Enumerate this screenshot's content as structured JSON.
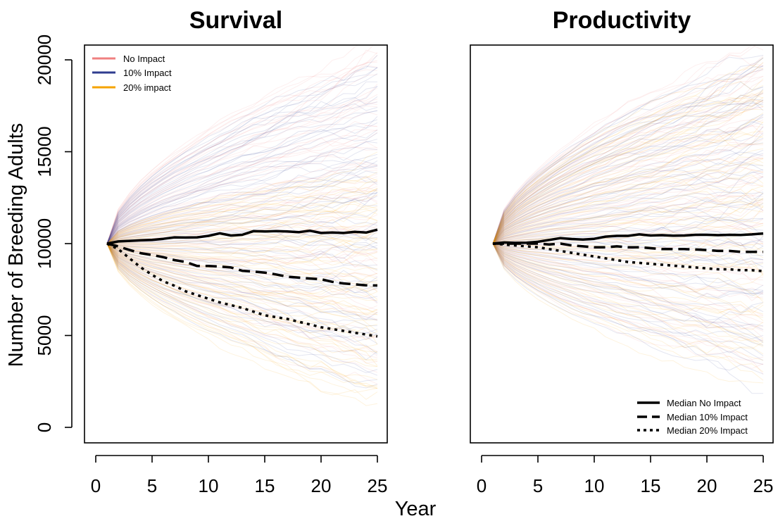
{
  "figure": {
    "shared_xlabel": "Year",
    "shared_ylabel": "Number of Breeding Adults"
  },
  "colors": {
    "no_impact": "#f08080",
    "impact_10": "#2f3c8f",
    "impact_20": "#f5a300",
    "median": "#000000"
  },
  "legends": {
    "scenarios": {
      "placement": "top-left of Survival panel",
      "items": [
        {
          "label": "No Impact",
          "color": "#f08080"
        },
        {
          "label": "10% Impact",
          "color": "#2f3c8f"
        },
        {
          "label": "20% impact",
          "color": "#f5a300"
        }
      ]
    },
    "medians": {
      "placement": "bottom-right of Productivity panel",
      "items": [
        {
          "label": "Median No Impact",
          "style": "solid"
        },
        {
          "label": "Median 10% Impact",
          "style": "dashed"
        },
        {
          "label": "Median 20% Impact",
          "style": "dotted"
        }
      ]
    }
  },
  "chart_data": [
    {
      "type": "line",
      "title": "Survival",
      "xlabel": "Year",
      "ylabel": "Number of Breeding Adults",
      "xlim": [
        0,
        25
      ],
      "ylim": [
        0,
        20000
      ],
      "xticks": [
        0,
        5,
        10,
        15,
        20,
        25
      ],
      "yticks": [
        0,
        5000,
        10000,
        15000,
        20000
      ],
      "grid": false,
      "background_trajectories": {
        "description_free": true,
        "start_value": 10000,
        "scenarios": [
          {
            "name": "No Impact",
            "color": "#f08080",
            "year25_low": 2500,
            "year25_high": 21000
          },
          {
            "name": "10% Impact",
            "color": "#2f3c8f",
            "year25_low": 1800,
            "year25_high": 20000
          },
          {
            "name": "20% impact",
            "color": "#f5a300",
            "year25_low": 900,
            "year25_high": 14000
          }
        ]
      },
      "series": [
        {
          "name": "Median No Impact",
          "style": "solid",
          "x": [
            1,
            2,
            3,
            4,
            5,
            6,
            7,
            8,
            9,
            10,
            11,
            12,
            13,
            14,
            15,
            16,
            17,
            18,
            19,
            20,
            21,
            22,
            23,
            24,
            25
          ],
          "y": [
            10000,
            10120,
            10150,
            10180,
            10200,
            10260,
            10340,
            10330,
            10340,
            10420,
            10560,
            10440,
            10480,
            10680,
            10660,
            10680,
            10660,
            10620,
            10700,
            10580,
            10600,
            10580,
            10640,
            10600,
            10760
          ]
        },
        {
          "name": "Median 10% Impact",
          "style": "dashed",
          "x": [
            1,
            2,
            3,
            4,
            5,
            6,
            7,
            8,
            9,
            10,
            11,
            12,
            13,
            14,
            15,
            16,
            17,
            18,
            19,
            20,
            21,
            22,
            23,
            24,
            25
          ],
          "y": [
            10000,
            9850,
            9650,
            9480,
            9380,
            9260,
            9100,
            9000,
            8780,
            8780,
            8750,
            8700,
            8520,
            8480,
            8420,
            8320,
            8200,
            8150,
            8100,
            8060,
            7920,
            7830,
            7780,
            7730,
            7720
          ]
        },
        {
          "name": "Median 20% Impact",
          "style": "dotted",
          "x": [
            1,
            2,
            3,
            4,
            5,
            6,
            7,
            8,
            9,
            10,
            11,
            12,
            13,
            14,
            15,
            16,
            17,
            18,
            19,
            20,
            21,
            22,
            23,
            24,
            25
          ],
          "y": [
            10000,
            9700,
            9200,
            8700,
            8300,
            7950,
            7700,
            7400,
            7200,
            7000,
            6800,
            6650,
            6500,
            6300,
            6100,
            6000,
            5900,
            5750,
            5600,
            5450,
            5350,
            5250,
            5150,
            5050,
            4950
          ]
        }
      ]
    },
    {
      "type": "line",
      "title": "Productivity",
      "xlabel": "Year",
      "ylabel": "",
      "xlim": [
        0,
        25
      ],
      "ylim": [
        0,
        20000
      ],
      "xticks": [
        0,
        5,
        10,
        15,
        20,
        25
      ],
      "yticks": [],
      "grid": false,
      "background_trajectories": {
        "start_value": 10000,
        "scenarios": [
          {
            "name": "No Impact",
            "color": "#f08080",
            "year25_low": 2600,
            "year25_high": 21000
          },
          {
            "name": "10% Impact",
            "color": "#2f3c8f",
            "year25_low": 2300,
            "year25_high": 20500
          },
          {
            "name": "20% impact",
            "color": "#f5a300",
            "year25_low": 2000,
            "year25_high": 20000
          }
        ]
      },
      "series": [
        {
          "name": "Median No Impact",
          "style": "solid",
          "x": [
            1,
            2,
            3,
            4,
            5,
            6,
            7,
            8,
            9,
            10,
            11,
            12,
            13,
            14,
            15,
            16,
            17,
            18,
            19,
            20,
            21,
            22,
            23,
            24,
            25
          ],
          "y": [
            10000,
            10060,
            10040,
            10050,
            10100,
            10200,
            10300,
            10250,
            10220,
            10260,
            10380,
            10420,
            10420,
            10500,
            10440,
            10460,
            10430,
            10440,
            10480,
            10480,
            10460,
            10480,
            10470,
            10500,
            10550
          ]
        },
        {
          "name": "Median 10% Impact",
          "style": "dashed",
          "x": [
            1,
            2,
            3,
            4,
            5,
            6,
            7,
            8,
            9,
            10,
            11,
            12,
            13,
            14,
            15,
            16,
            17,
            18,
            19,
            20,
            21,
            22,
            23,
            24,
            25
          ],
          "y": [
            10000,
            10000,
            10000,
            10000,
            10000,
            9950,
            10000,
            9900,
            9850,
            9800,
            9800,
            9850,
            9800,
            9800,
            9750,
            9700,
            9700,
            9700,
            9680,
            9650,
            9600,
            9600,
            9550,
            9550,
            9550
          ]
        },
        {
          "name": "Median 20% Impact",
          "style": "dotted",
          "x": [
            1,
            2,
            3,
            4,
            5,
            6,
            7,
            8,
            9,
            10,
            11,
            12,
            13,
            14,
            15,
            16,
            17,
            18,
            19,
            20,
            21,
            22,
            23,
            24,
            25
          ],
          "y": [
            10000,
            9950,
            9900,
            9850,
            9800,
            9700,
            9600,
            9500,
            9400,
            9300,
            9200,
            9100,
            9000,
            8950,
            8900,
            8850,
            8800,
            8750,
            8700,
            8650,
            8600,
            8600,
            8550,
            8550,
            8500
          ]
        }
      ]
    }
  ]
}
